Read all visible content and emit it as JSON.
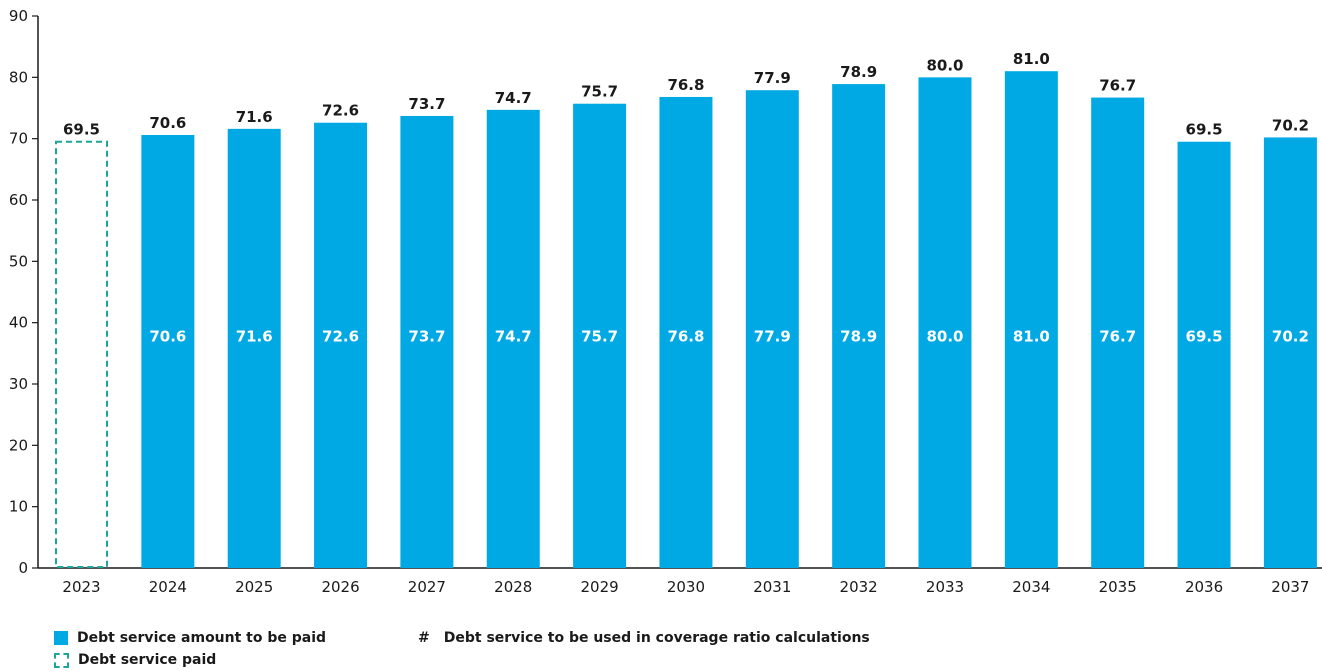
{
  "chart_data": {
    "type": "bar",
    "categories": [
      "2023",
      "2024",
      "2025",
      "2026",
      "2027",
      "2028",
      "2029",
      "2030",
      "2031",
      "2032",
      "2033",
      "2034",
      "2035",
      "2036",
      "2037"
    ],
    "series": [
      {
        "name": "Debt service paid",
        "style": "dashed-outline",
        "values": [
          69.5,
          null,
          null,
          null,
          null,
          null,
          null,
          null,
          null,
          null,
          null,
          null,
          null,
          null,
          null
        ]
      },
      {
        "name": "Debt service amount to be paid",
        "style": "solid",
        "values": [
          null,
          70.6,
          71.6,
          72.6,
          73.7,
          74.7,
          75.7,
          76.8,
          77.9,
          78.9,
          80.0,
          81.0,
          76.7,
          69.5,
          70.2
        ]
      }
    ],
    "top_labels": [
      "69.5",
      "70.6",
      "71.6",
      "72.6",
      "73.7",
      "74.7",
      "75.7",
      "76.8",
      "77.9",
      "78.9",
      "80.0",
      "81.0",
      "76.7",
      "69.5",
      "70.2"
    ],
    "inner_labels": [
      null,
      "70.6",
      "71.6",
      "72.6",
      "73.7",
      "74.7",
      "75.7",
      "76.8",
      "77.9",
      "78.9",
      "80.0",
      "81.0",
      "76.7",
      "69.5",
      "70.2"
    ],
    "y_ticks": [
      0,
      10,
      20,
      30,
      40,
      50,
      60,
      70,
      80,
      90
    ],
    "ylim": [
      0,
      90
    ],
    "title": "",
    "xlabel": "",
    "ylabel": "",
    "grid": false,
    "legend_position": "bottom-left",
    "colors": {
      "solid_bar": "#00a9e4",
      "dashed_outline": "#1aa79a",
      "axis": "#1a1a1a",
      "inner_label": "#ffffff"
    }
  },
  "legend": {
    "solid_label": "Debt service amount to be paid",
    "dashed_label": "Debt service paid",
    "hash_symbol": "#",
    "hash_label": "Debt service to be used in coverage ratio calculations"
  }
}
